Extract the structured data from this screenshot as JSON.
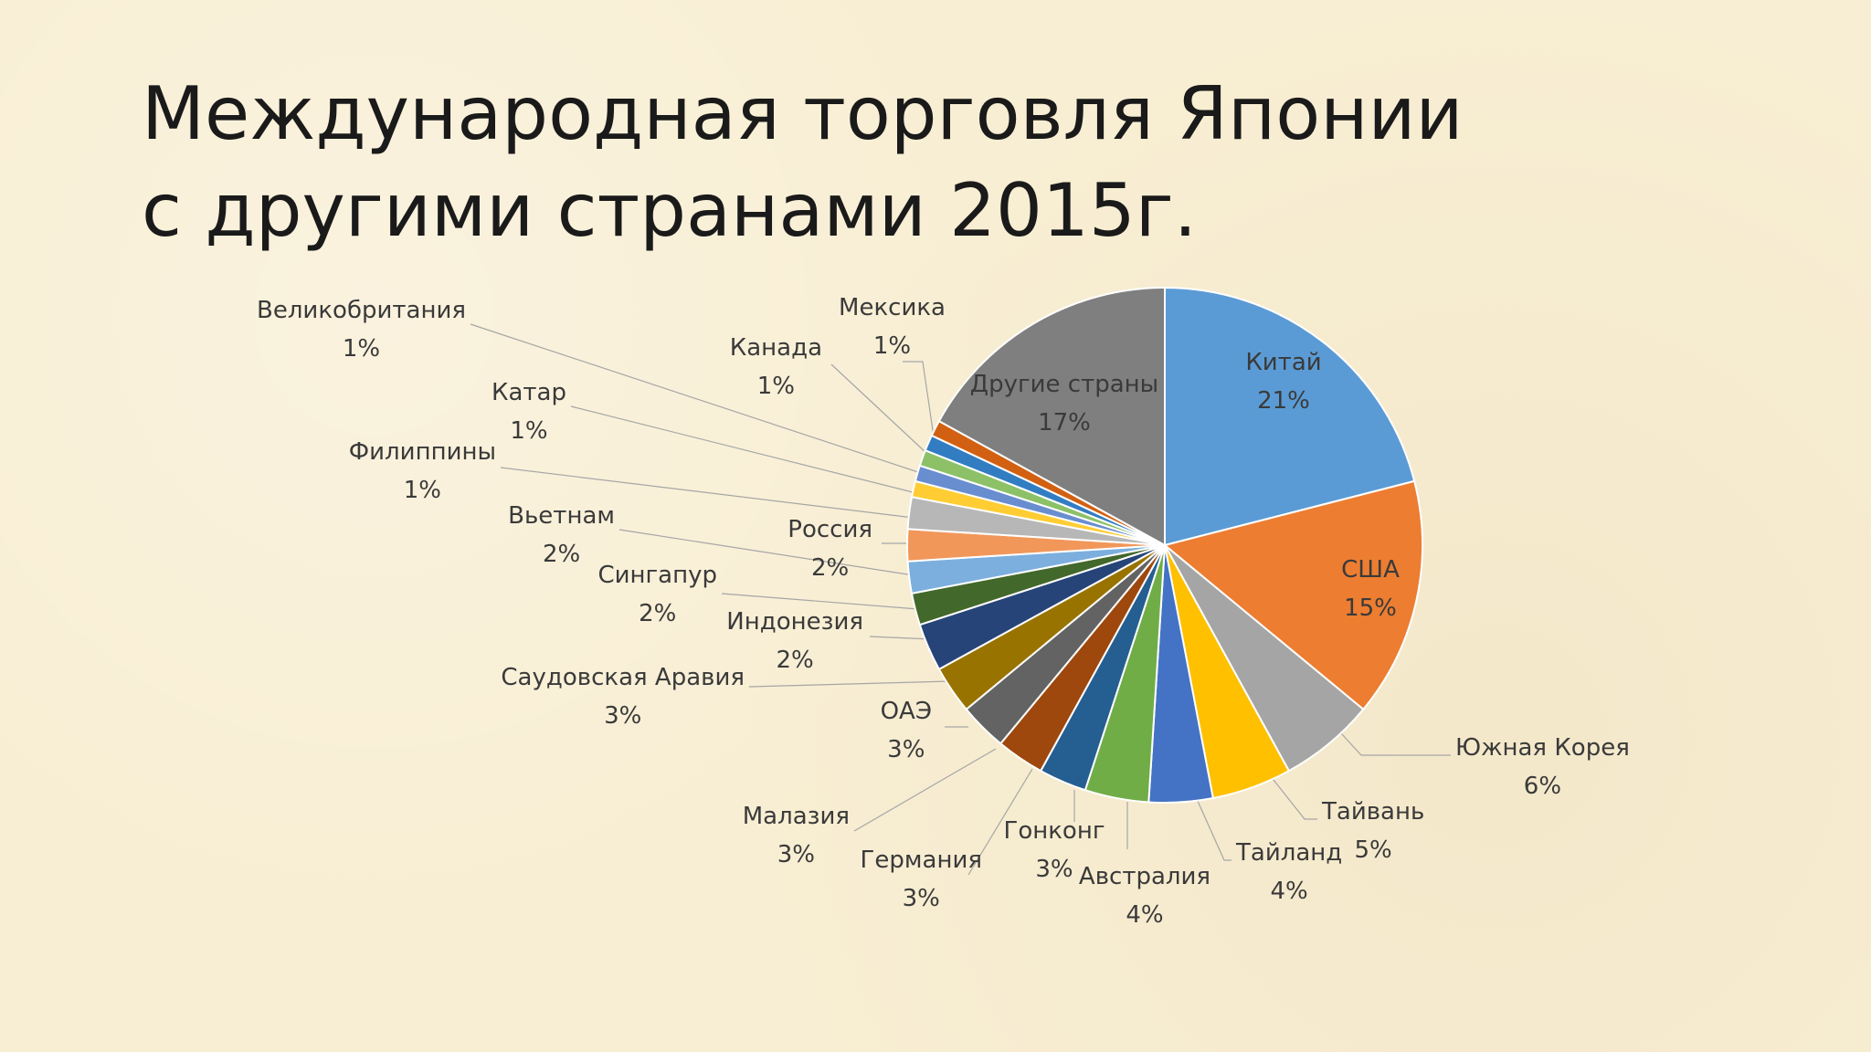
{
  "slide": {
    "title": "Международная торговля Японии с другими странами 2015г."
  },
  "chart_data": {
    "type": "pie",
    "title": "",
    "start_angle_deg": 0,
    "direction": "clockwise",
    "slices": [
      {
        "label": "Китай",
        "value": 21,
        "display": "21%",
        "color": "#5b9bd5"
      },
      {
        "label": "США",
        "value": 15,
        "display": "15%",
        "color": "#ed7d31"
      },
      {
        "label": "Южная Корея",
        "value": 6,
        "display": "6%",
        "color": "#a5a5a5"
      },
      {
        "label": "Тайвань",
        "value": 5,
        "display": "5%",
        "color": "#ffc000"
      },
      {
        "label": "Тайланд",
        "value": 4,
        "display": "4%",
        "color": "#4472c4"
      },
      {
        "label": "Австралия",
        "value": 4,
        "display": "4%",
        "color": "#70ad47"
      },
      {
        "label": "Гонконг",
        "value": 3,
        "display": "3%",
        "color": "#255e91"
      },
      {
        "label": "Германия",
        "value": 3,
        "display": "3%",
        "color": "#9e480e"
      },
      {
        "label": "Малазия",
        "value": 3,
        "display": "3%",
        "color": "#636363"
      },
      {
        "label": "ОАЭ",
        "value": 3,
        "display": "3%",
        "color": "#997300"
      },
      {
        "label": "Саудовская Аравия",
        "value": 3,
        "display": "3%",
        "color": "#264478"
      },
      {
        "label": "Индонезия",
        "value": 2,
        "display": "2%",
        "color": "#43682b"
      },
      {
        "label": "Сингапур",
        "value": 2,
        "display": "2%",
        "color": "#7cafdd"
      },
      {
        "label": "Вьетнам",
        "value": 2,
        "display": "2%",
        "color": "#f1975a"
      },
      {
        "label": "Россия",
        "value": 2,
        "display": "2%",
        "color": "#b7b7b7"
      },
      {
        "label": "Филиппины",
        "value": 1,
        "display": "1%",
        "color": "#ffcd33"
      },
      {
        "label": "Катар",
        "value": 1,
        "display": "1%",
        "color": "#698ed0"
      },
      {
        "label": "Великобритания",
        "value": 1,
        "display": "1%",
        "color": "#8cc168"
      },
      {
        "label": "Канада",
        "value": 1,
        "display": "1%",
        "color": "#327dc2"
      },
      {
        "label": "Мексика",
        "value": 1,
        "display": "1%",
        "color": "#d26012"
      },
      {
        "label": "Другие страны",
        "value": 17,
        "display": "17%",
        "color": "#7f7f7f"
      }
    ]
  }
}
